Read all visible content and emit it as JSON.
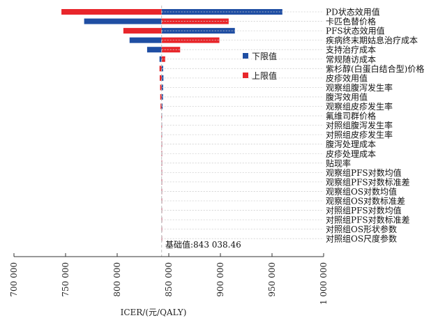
{
  "chart_data": {
    "type": "bar",
    "orientation": "horizontal",
    "subtype": "tornado",
    "base_value": 843038.46,
    "base_label": "基础值:843 038.46",
    "xlabel": "ICER/(元/QALY)",
    "xlim": [
      700000,
      1000000
    ],
    "ticks": [
      700000,
      750000,
      800000,
      850000,
      900000,
      950000,
      1000000
    ],
    "tick_labels": [
      "700 000",
      "750 000",
      "800 000",
      "850 000",
      "900 000",
      "950 000",
      "1 000 000"
    ],
    "legend": {
      "position": "right",
      "items": [
        {
          "name": "下限值",
          "color": "#1f4ea3"
        },
        {
          "name": "上限值",
          "color": "#e8262b"
        }
      ]
    },
    "colors": {
      "lower": "#1f4ea3",
      "upper": "#e8262b",
      "baseline": "#bfbfbf"
    },
    "categories": [
      "PD状态效用值",
      "卡匹色替价格",
      "PFS状态效用值",
      "疾病终末期姑息治疗成本",
      "支持治疗成本",
      "常规随访成本",
      "紫杉醇(白蛋白结合型)价格",
      "皮疹效用值",
      "观察组腹泻发生率",
      "腹泻效用值",
      "观察组皮疹发生率",
      "氟维司群价格",
      "对照组腹泻发生率",
      "对照组皮疹发生率",
      "腹泻处理成本",
      "皮疹处理成本",
      "贴现率",
      "观察组PFS对数均值",
      "观察组PFS对数标准差",
      "观察组OS对数均值",
      "观察组OS对数标准差",
      "对照组PFS对数均值",
      "对照组PFS对数标准差",
      "对照组OS形状参数",
      "对照组OS尺度参数"
    ],
    "series": [
      {
        "name": "下限值",
        "values": [
          960000,
          768000,
          914000,
          812000,
          829000,
          841000,
          844500,
          844800,
          844500,
          844400,
          844000,
          843300,
          843200,
          843200,
          843100,
          843100,
          843050,
          843040,
          843040,
          843040,
          843040,
          843040,
          843040,
          843040,
          843040
        ]
      },
      {
        "name": "上限值",
        "values": [
          746000,
          908000,
          806000,
          899000,
          861000,
          846500,
          841000,
          841200,
          841600,
          841700,
          842000,
          842800,
          842900,
          842900,
          843000,
          843000,
          843030,
          843035,
          843035,
          843035,
          843035,
          843035,
          843035,
          843035,
          843035
        ]
      }
    ]
  }
}
